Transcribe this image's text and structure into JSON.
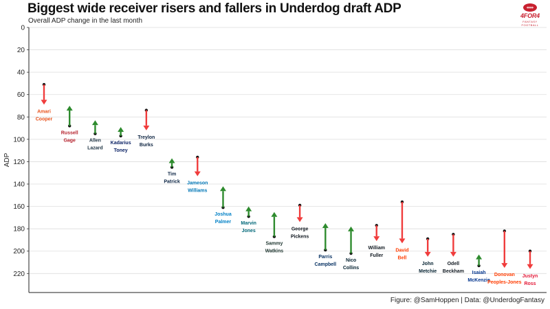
{
  "header": {
    "title": "Biggest wide receiver risers and fallers in Underdog draft ADP",
    "subtitle": "Overall ADP change in the last month"
  },
  "logo": {
    "text": "4FOR4",
    "sub": "FANTASY FOOTBALL",
    "color": "#c8202f"
  },
  "caption": "Figure: @SamHoppen | Data: @UnderdogFantasy",
  "chart_data": {
    "type": "arrow",
    "ylabel": "ADP",
    "ylim": [
      0,
      237
    ],
    "yticks": [
      0,
      20,
      40,
      60,
      80,
      100,
      120,
      140,
      160,
      180,
      200,
      220
    ],
    "y_reversed": true,
    "grid": true,
    "colors": {
      "riser_arrow": "#2e8b2e",
      "faller_arrow": "#f03c3c"
    },
    "players": [
      {
        "name": [
          "Amari",
          "Cooper"
        ],
        "from": 51,
        "to": 69,
        "label_color": "#e8521c"
      },
      {
        "name": [
          "Russell",
          "Gage"
        ],
        "from": 88,
        "to": 70,
        "label_color": "#b5222d"
      },
      {
        "name": [
          "Allen",
          "Lazard"
        ],
        "from": 95,
        "to": 83,
        "label_color": "#1e3343"
      },
      {
        "name": [
          "Kadarius",
          "Toney"
        ],
        "from": 97,
        "to": 89,
        "label_color": "#0b2265"
      },
      {
        "name": [
          "Treylon",
          "Burks"
        ],
        "from": 74,
        "to": 92,
        "label_color": "#0c2340"
      },
      {
        "name": [
          "Tim",
          "Patrick"
        ],
        "from": 125,
        "to": 117,
        "label_color": "#0a2343"
      },
      {
        "name": [
          "Jameson",
          "Williams"
        ],
        "from": 116,
        "to": 133,
        "label_color": "#0076b6"
      },
      {
        "name": [
          "Joshua",
          "Palmer"
        ],
        "from": 161,
        "to": 142,
        "label_color": "#0080c6"
      },
      {
        "name": [
          "Marvin",
          "Jones"
        ],
        "from": 169,
        "to": 160,
        "label_color": "#006778"
      },
      {
        "name": [
          "Sammy",
          "Watkins"
        ],
        "from": 187,
        "to": 165,
        "label_color": "#203731"
      },
      {
        "name": [
          "George",
          "Pickens"
        ],
        "from": 159,
        "to": 174,
        "label_color": "#101820"
      },
      {
        "name": [
          "Parris",
          "Campbell"
        ],
        "from": 199,
        "to": 175,
        "label_color": "#002c5f"
      },
      {
        "name": [
          "Nico",
          "Collins"
        ],
        "from": 202,
        "to": 178,
        "label_color": "#03202f"
      },
      {
        "name": [
          "William",
          "Fuller"
        ],
        "from": 177,
        "to": 191,
        "label_color": "#101820"
      },
      {
        "name": [
          "David",
          "Bell"
        ],
        "from": 156,
        "to": 193,
        "label_color": "#ff3c00"
      },
      {
        "name": [
          "John",
          "Metchie"
        ],
        "from": 189,
        "to": 205,
        "label_color": "#03202f"
      },
      {
        "name": [
          "Odell",
          "Beckham"
        ],
        "from": 185,
        "to": 205,
        "label_color": "#101820"
      },
      {
        "name": [
          "Isaiah",
          "McKenzie"
        ],
        "from": 213,
        "to": 203,
        "label_color": "#00338d"
      },
      {
        "name": [
          "Donovan",
          "Peoples-Jones"
        ],
        "from": 182,
        "to": 215,
        "label_color": "#ff3c00"
      },
      {
        "name": [
          "Justyn",
          "Ross"
        ],
        "from": 200,
        "to": 216,
        "label_color": "#e31837"
      }
    ]
  }
}
